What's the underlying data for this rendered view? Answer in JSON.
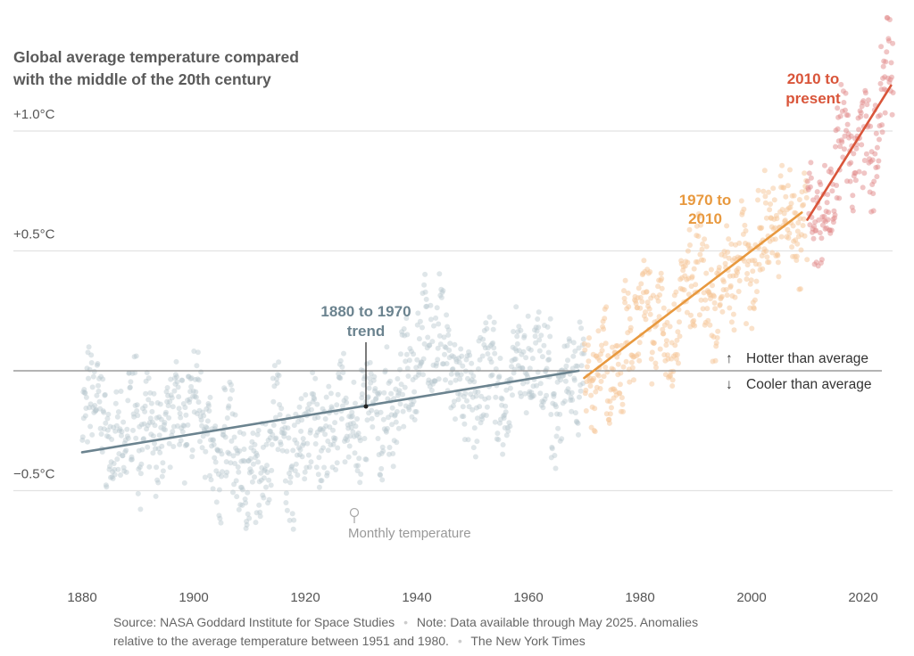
{
  "chart_data": {
    "type": "scatter",
    "title": [
      "Global average temperature compared",
      "with the middle of the 20th century"
    ],
    "xlabel": "",
    "ylabel": "",
    "xlim": [
      1880,
      2025
    ],
    "ylim": [
      -0.85,
      1.5
    ],
    "grid": true,
    "x_ticks": [
      1880,
      1900,
      1920,
      1940,
      1960,
      1980,
      2000,
      2020
    ],
    "x_tick_labels": [
      "1880",
      "1900",
      "1920",
      "1940",
      "1960",
      "1980",
      "2000",
      "2020"
    ],
    "y_ticks": [
      1.0,
      0.5,
      -0.5
    ],
    "y_tick_labels": [
      "+1.0°C",
      "+0.5°C",
      "−0.5°C"
    ],
    "baseline": 0,
    "points_label": "Monthly temperature",
    "annual_anomalies": {
      "start_year": 1880,
      "values": [
        -0.17,
        -0.09,
        -0.11,
        -0.17,
        -0.28,
        -0.33,
        -0.31,
        -0.36,
        -0.17,
        -0.1,
        -0.35,
        -0.22,
        -0.27,
        -0.31,
        -0.3,
        -0.23,
        -0.11,
        -0.11,
        -0.27,
        -0.17,
        -0.08,
        -0.15,
        -0.28,
        -0.37,
        -0.47,
        -0.26,
        -0.22,
        -0.39,
        -0.43,
        -0.48,
        -0.43,
        -0.44,
        -0.36,
        -0.35,
        -0.15,
        -0.14,
        -0.36,
        -0.46,
        -0.3,
        -0.28,
        -0.27,
        -0.19,
        -0.29,
        -0.27,
        -0.27,
        -0.22,
        -0.11,
        -0.22,
        -0.2,
        -0.36,
        -0.16,
        -0.1,
        -0.16,
        -0.29,
        -0.13,
        -0.2,
        -0.15,
        -0.03,
        0.0,
        -0.02,
        0.13,
        0.19,
        0.07,
        0.09,
        0.2,
        0.09,
        -0.07,
        -0.03,
        -0.11,
        -0.11,
        -0.17,
        -0.07,
        0.01,
        0.08,
        -0.13,
        -0.14,
        -0.19,
        0.05,
        0.06,
        0.03,
        -0.03,
        0.06,
        0.03,
        0.05,
        -0.2,
        -0.11,
        -0.06,
        -0.02,
        -0.08,
        0.05,
        0.03,
        -0.08,
        0.01,
        0.16,
        -0.07,
        -0.01,
        -0.1,
        0.18,
        0.07,
        0.16,
        0.26,
        0.32,
        0.14,
        0.31,
        0.16,
        0.12,
        0.18,
        0.32,
        0.39,
        0.27,
        0.45,
        0.4,
        0.22,
        0.23,
        0.31,
        0.45,
        0.33,
        0.46,
        0.61,
        0.38,
        0.39,
        0.54,
        0.63,
        0.62,
        0.53,
        0.68,
        0.64,
        0.66,
        0.54,
        0.65,
        0.72,
        0.61,
        0.65,
        0.68,
        0.75,
        0.9,
        1.01,
        0.92,
        0.85,
        0.98,
        1.01,
        0.85,
        0.89,
        1.17,
        1.28,
        1.22
      ]
    },
    "series": [
      {
        "name": "1880 to 1970 trend",
        "color": "#6b838f",
        "x": [
          1880,
          1969
        ],
        "y": [
          -0.34,
          0.0
        ]
      },
      {
        "name": "1970 to 2010",
        "color": "#e8993f",
        "x": [
          1970,
          2009
        ],
        "y": [
          -0.03,
          0.66
        ]
      },
      {
        "name": "2010 to present",
        "color": "#d9553a",
        "x": [
          2010,
          2025
        ],
        "y": [
          0.63,
          1.19
        ]
      }
    ],
    "annotations": {
      "trend_1880": [
        "1880 to 1970",
        "trend"
      ],
      "trend_1970": [
        "1970 to",
        "2010"
      ],
      "trend_2010": [
        "2010 to",
        "present"
      ],
      "hotter": "Hotter than average",
      "cooler": "Cooler than average",
      "hotter_arrow": "↑",
      "cooler_arrow": "↓"
    },
    "dot_colors": {
      "early": "#b9c8cf",
      "mid": "#f6c597",
      "late": "#e28b8b"
    }
  },
  "footer": {
    "source": "Source: NASA Goddard Institute for Space Studies",
    "note_1": "Note: Data available through May 2025. Anomalies",
    "note_2": "relative to the average temperature between 1951 and 1980.",
    "credit": "The New York Times",
    "separator": "•"
  }
}
